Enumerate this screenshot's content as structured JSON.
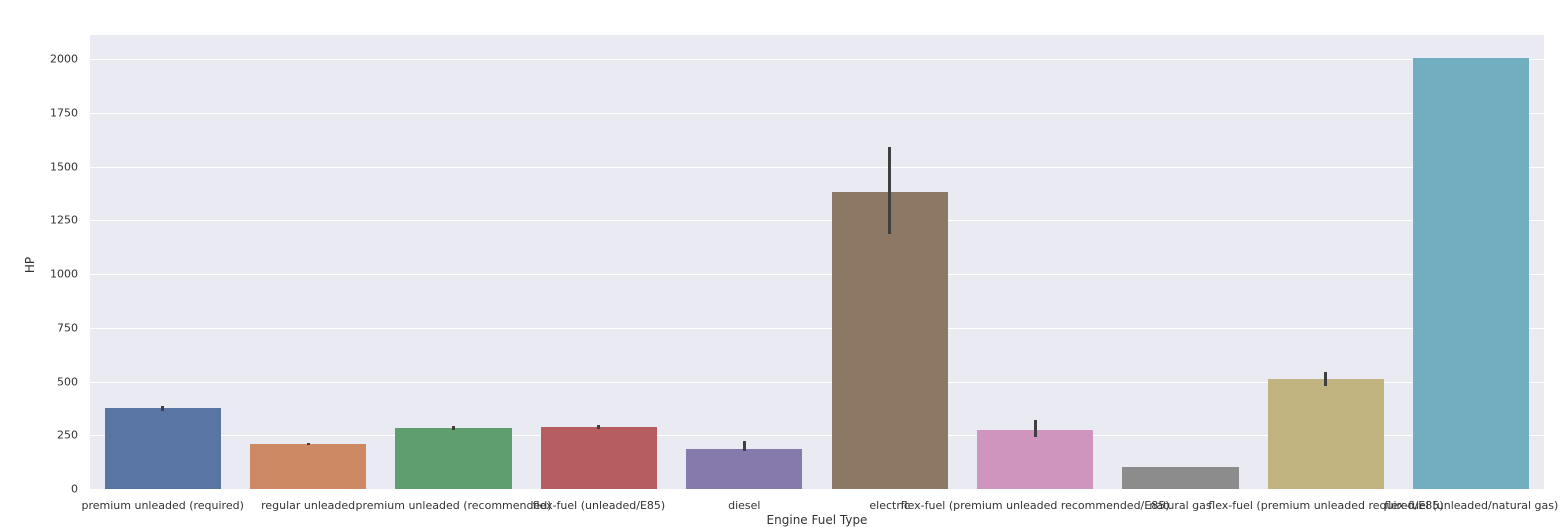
{
  "chart_data": {
    "type": "bar",
    "title": "",
    "xlabel": "Engine Fuel Type",
    "ylabel": "HP",
    "ylim": [
      0,
      2100
    ],
    "yticks": [
      0,
      250,
      500,
      750,
      1000,
      1250,
      1500,
      1750,
      2000
    ],
    "grid": true,
    "legend": null,
    "categories": [
      "premium unleaded (required)",
      "regular unleaded",
      "premium unleaded (recommended)",
      "flex-fuel (unleaded/E85)",
      "diesel",
      "electric",
      "flex-fuel (premium unleaded recommended/E85)",
      "natural gas",
      "flex-fuel (premium unleaded required/E85)",
      "flex-fuel (unleaded/natural gas)"
    ],
    "values": [
      375,
      208,
      284,
      287,
      188,
      1383,
      276,
      101,
      510,
      2006
    ],
    "error_bars": [
      [
        364,
        386
      ],
      [
        203,
        216
      ],
      [
        275,
        294
      ],
      [
        279,
        296
      ],
      [
        175,
        223
      ],
      [
        1185,
        1590
      ],
      [
        240,
        320
      ],
      null,
      [
        480,
        542
      ],
      null
    ],
    "colors": [
      "#5875a4",
      "#cc8963",
      "#5f9e6e",
      "#b55d60",
      "#857aab",
      "#8d7866",
      "#d095bf",
      "#8c8c8c",
      "#c1b37f",
      "#71aec0"
    ]
  }
}
